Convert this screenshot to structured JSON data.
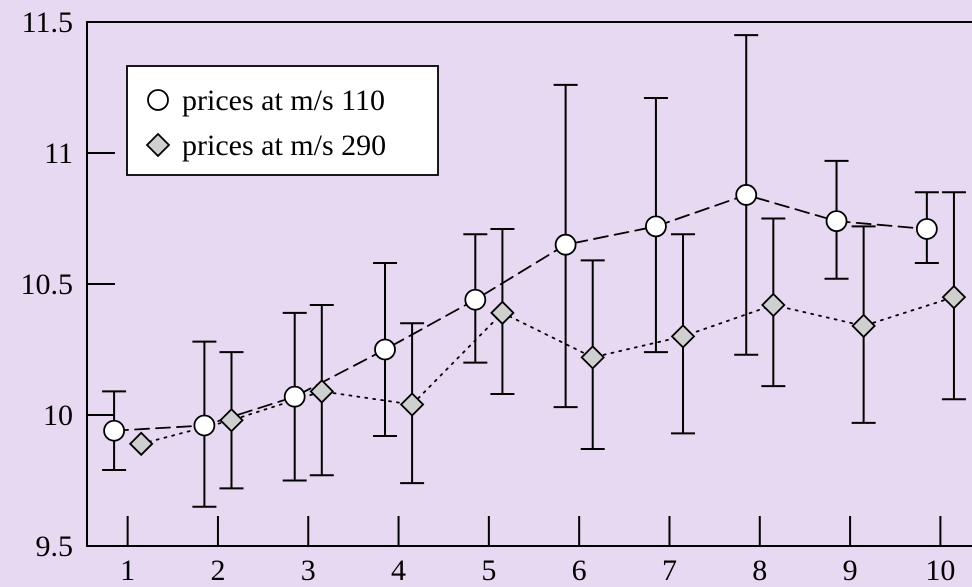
{
  "chart_data": {
    "type": "line",
    "title": "",
    "xlabel": "",
    "ylabel": "",
    "categories": [
      "1",
      "2",
      "3",
      "4",
      "5",
      "6",
      "7",
      "8",
      "9",
      "10"
    ],
    "xlim": [
      0.55,
      10.35
    ],
    "ylim": [
      9.5,
      11.5
    ],
    "y_ticks": [
      "9.5",
      "10",
      "10.5",
      "11",
      "11.5"
    ],
    "grid": false,
    "legend_position": "top-left",
    "series": [
      {
        "name": "prices at m/s 110",
        "marker": "circle",
        "line_style": "dashed",
        "marker_fill": "#ffffff",
        "x": [
          0.85,
          1.85,
          2.85,
          3.85,
          4.85,
          5.85,
          6.85,
          7.85,
          8.85,
          9.85
        ],
        "values": [
          9.94,
          9.96,
          10.07,
          10.25,
          10.44,
          10.65,
          10.72,
          10.84,
          10.74,
          10.71
        ],
        "err_low": [
          9.79,
          9.65,
          9.75,
          9.92,
          10.2,
          10.03,
          10.24,
          10.23,
          10.52,
          10.58
        ],
        "err_high": [
          10.09,
          10.28,
          10.39,
          10.58,
          10.69,
          11.26,
          11.21,
          11.45,
          10.97,
          10.85
        ]
      },
      {
        "name": "prices at m/s 290",
        "marker": "diamond",
        "line_style": "dotted",
        "marker_fill": "#cfcfcf",
        "x": [
          1.15,
          2.15,
          3.15,
          4.15,
          5.15,
          6.15,
          7.15,
          8.15,
          9.15,
          10.15
        ],
        "values": [
          9.89,
          9.98,
          10.09,
          10.04,
          10.39,
          10.22,
          10.3,
          10.42,
          10.34,
          10.45
        ],
        "err_low": [
          9.89,
          9.72,
          9.77,
          9.74,
          10.08,
          9.87,
          9.93,
          10.11,
          9.97,
          10.06
        ],
        "err_high": [
          9.89,
          10.24,
          10.42,
          10.35,
          10.71,
          10.59,
          10.69,
          10.75,
          10.72,
          10.85
        ]
      }
    ]
  }
}
